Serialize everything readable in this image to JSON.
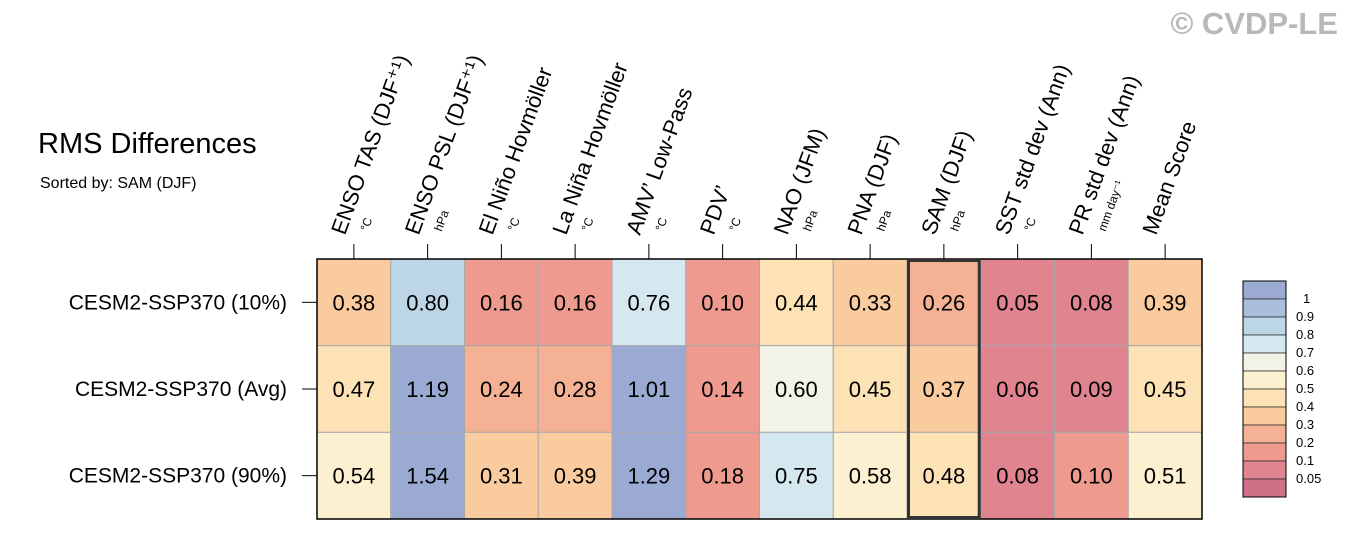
{
  "title": "RMS Differences",
  "subtitle": "Sorted by: SAM (DJF)",
  "watermark": "© CVDP-LE",
  "chart_data": {
    "type": "heatmap",
    "columns": [
      {
        "label": "ENSO TAS (DJF⁺¹)",
        "unit": "°C"
      },
      {
        "label": "ENSO PSL (DJF⁺¹)",
        "unit": "hPa"
      },
      {
        "label": "El Niño Hovmöller",
        "unit": "°C"
      },
      {
        "label": "La Niña Hovmöller",
        "unit": "°C"
      },
      {
        "label": "AMV’ Low-Pass",
        "unit": "°C"
      },
      {
        "label": "PDV’",
        "unit": "°C"
      },
      {
        "label": "NAO (JFM)",
        "unit": "hPa"
      },
      {
        "label": "PNA (DJF)",
        "unit": "hPa"
      },
      {
        "label": "SAM (DJF)",
        "unit": "hPa"
      },
      {
        "label": "SST std dev (Ann)",
        "unit": "°C"
      },
      {
        "label": "PR std dev (Ann)",
        "unit": "mm day⁻¹"
      },
      {
        "label": "Mean Score",
        "unit": ""
      }
    ],
    "rows": [
      {
        "label": "CESM2-SSP370 (10%)",
        "values": [
          "0.38",
          "0.80",
          "0.16",
          "0.16",
          "0.76",
          "0.10",
          "0.44",
          "0.33",
          "0.26",
          "0.05",
          "0.08",
          "0.39"
        ]
      },
      {
        "label": "CESM2-SSP370 (Avg)",
        "values": [
          "0.47",
          "1.19",
          "0.24",
          "0.28",
          "1.01",
          "0.14",
          "0.60",
          "0.45",
          "0.37",
          "0.06",
          "0.09",
          "0.45"
        ]
      },
      {
        "label": "CESM2-SSP370 (90%)",
        "values": [
          "0.54",
          "1.54",
          "0.31",
          "0.39",
          "1.29",
          "0.18",
          "0.75",
          "0.58",
          "0.48",
          "0.08",
          "0.10",
          "0.51"
        ]
      }
    ],
    "highlighted_column": "SAM (DJF)",
    "colorbar": {
      "labels": [
        "1",
        "0.9",
        "0.8",
        "0.7",
        "0.6",
        "0.5",
        "0.4",
        "0.3",
        "0.2",
        "0.1",
        "0.05"
      ],
      "colors": [
        "#9aaad2",
        "#a9bfdb",
        "#bcd6e6",
        "#d6e8ef",
        "#f2f2e6",
        "#fbf0cf",
        "#fde2b6",
        "#fbcba0",
        "#f5b193",
        "#ee9a8f",
        "#e0848f",
        "#cf6f88"
      ]
    }
  }
}
